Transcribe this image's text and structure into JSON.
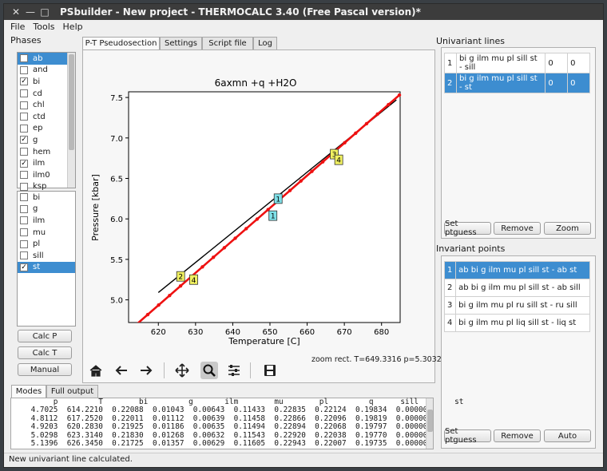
{
  "window": {
    "title": "PSbuilder - New project - THERMOCALC 3.40 (Free Pascal version)*",
    "controls": [
      "✕",
      "—",
      "□"
    ]
  },
  "menu": [
    "File",
    "Tools",
    "Help"
  ],
  "phases": {
    "label": "Phases",
    "items": [
      {
        "name": "ab",
        "checked": false,
        "selected": true
      },
      {
        "name": "and",
        "checked": false
      },
      {
        "name": "bi",
        "checked": true
      },
      {
        "name": "cd",
        "checked": false
      },
      {
        "name": "chl",
        "checked": false
      },
      {
        "name": "ctd",
        "checked": false
      },
      {
        "name": "ep",
        "checked": false
      },
      {
        "name": "g",
        "checked": true
      },
      {
        "name": "hem",
        "checked": false
      },
      {
        "name": "ilm",
        "checked": true
      },
      {
        "name": "ilm0",
        "checked": false
      },
      {
        "name": "ksp",
        "checked": false
      }
    ],
    "selected_items": [
      {
        "name": "bi",
        "checked": false
      },
      {
        "name": "g",
        "checked": false
      },
      {
        "name": "ilm",
        "checked": false
      },
      {
        "name": "mu",
        "checked": false
      },
      {
        "name": "pl",
        "checked": false
      },
      {
        "name": "sill",
        "checked": false
      },
      {
        "name": "st",
        "checked": true,
        "selected": true
      }
    ],
    "buttons": [
      "Calc P",
      "Calc T",
      "Manual"
    ]
  },
  "tabs": [
    "P-T Pseudosection",
    "Settings",
    "Script file",
    "Log"
  ],
  "chart_data": {
    "type": "line",
    "title": "6axmn +q +H2O",
    "xlabel": "Temperature [C]",
    "ylabel": "Pressure [kbar]",
    "xlim": [
      612,
      685
    ],
    "ylim": [
      4.72,
      7.57
    ],
    "xticks": [
      620,
      630,
      640,
      650,
      660,
      670,
      680
    ],
    "yticks": [
      5.0,
      5.5,
      6.0,
      6.5,
      7.0,
      7.5
    ],
    "xtick_labels": [
      "620",
      "630",
      "640",
      "650",
      "660",
      "670",
      "680"
    ],
    "ytick_labels": [
      "5.0",
      "5.5",
      "6.0",
      "6.5",
      "7.0",
      "7.5"
    ],
    "series": [
      {
        "color": "#000000",
        "x": [
          620.0,
          684.0
        ],
        "y": [
          5.09,
          7.47
        ]
      },
      {
        "color": "#ee1111",
        "x": [
          614.2,
          684.8
        ],
        "y": [
          4.7,
          7.53
        ]
      }
    ],
    "points": [
      {
        "label": "2",
        "x": 626.0,
        "y": 5.29,
        "color": "#f0f060"
      },
      {
        "label": "4",
        "x": 629.5,
        "y": 5.25,
        "color": "#f0f060"
      },
      {
        "label": "3",
        "x": 667.3,
        "y": 6.8,
        "color": "#f0f060"
      },
      {
        "label": "4",
        "x": 668.5,
        "y": 6.73,
        "color": "#f0f060"
      },
      {
        "label": "1",
        "x": 652.2,
        "y": 6.25,
        "color": "#7ee0e8"
      },
      {
        "label": "1",
        "x": 650.8,
        "y": 6.04,
        "color": "#7ee0e8"
      }
    ]
  },
  "toolbar": {
    "icons": [
      "home-icon",
      "back-arrow-icon",
      "forward-arrow-icon",
      "pan-icon",
      "zoom-icon",
      "configure-icon",
      "save-icon"
    ],
    "status": "zoom rect. T=649.3316 p=5.3032"
  },
  "univariant": {
    "label": "Univariant lines",
    "rows": [
      {
        "n": "1",
        "phases": "bi g ilm mu pl sill st - sill",
        "a": "0",
        "b": "0"
      },
      {
        "n": "2",
        "phases": "bi g ilm mu pl sill st - st",
        "a": "0",
        "b": "0",
        "selected": true
      }
    ],
    "buttons": [
      "Set ptguess",
      "Remove",
      "Zoom"
    ]
  },
  "invariant": {
    "label": "Invariant points",
    "rows": [
      {
        "n": "1",
        "text": "ab bi g ilm mu pl sill st - ab st",
        "selected": true
      },
      {
        "n": "2",
        "text": "ab bi g ilm mu pl sill st - ab sill"
      },
      {
        "n": "3",
        "text": "bi g ilm mu pl ru sill st - ru sill"
      },
      {
        "n": "4",
        "text": "bi g ilm mu pl liq sill st - liq st"
      }
    ],
    "buttons": [
      "Set ptguess",
      "Remove",
      "Auto"
    ]
  },
  "bottom_tabs": [
    "Modes",
    "Full output"
  ],
  "modes_table": {
    "header": "         p         T        bi         g       ilm        mu        pl         q      sill        st",
    "rows": [
      "    4.7025  614.2210  0.22088  0.01043  0.00643  0.11433  0.22835  0.22124  0.19834  0.00000",
      "    4.8112  617.2520  0.22011  0.01112  0.00639  0.11458  0.22866  0.22096  0.19819  0.00000",
      "    4.9203  620.2830  0.21925  0.01186  0.00635  0.11494  0.22894  0.22068  0.19797  0.00000",
      "    5.0298  623.3140  0.21830  0.01268  0.00632  0.11543  0.22920  0.22038  0.19770  0.00000",
      "    5.1396  626.3450  0.21725  0.01357  0.00629  0.11605  0.22943  0.22007  0.19735  0.00000"
    ]
  },
  "status_bar": "New univariant line calculated."
}
